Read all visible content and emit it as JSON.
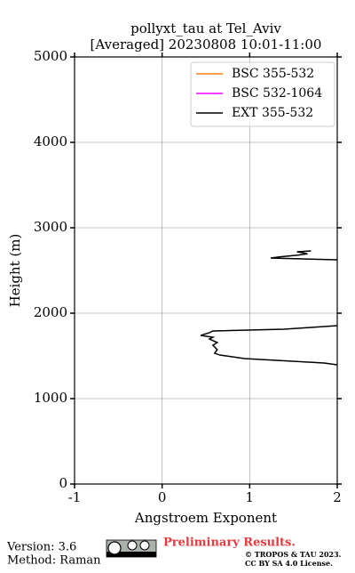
{
  "chart_data": {
    "type": "line",
    "orientation": "vertical-profile",
    "title": "pollyxt_tau at Tel_Aviv",
    "subtitle": "[Averaged] 20230808 10:01-11:00",
    "x_label": "Angstroem Exponent",
    "y_label": "Height (m)",
    "xlim": [
      -1,
      2
    ],
    "xticks": [
      -1,
      0,
      1,
      2
    ],
    "ylim": [
      0,
      5000
    ],
    "yticks": [
      0,
      1000,
      2000,
      3000,
      4000,
      5000
    ],
    "grid": true,
    "legend": "upper right",
    "y": [
      2729,
      2719,
      2705,
      2695,
      2680,
      2660,
      2646,
      2636,
      2625,
      2200,
      1854,
      1833,
      1812,
      1792,
      1771,
      1740,
      1719,
      1698,
      1656,
      1625,
      1573,
      1531,
      1510,
      1469,
      1437,
      1417,
      1396
    ],
    "series": [
      {
        "name": "BSC 355-532",
        "color": "#ff7f0e",
        "values": [
          null,
          null,
          null,
          null,
          null,
          null,
          null,
          null,
          null,
          null,
          null,
          null,
          null,
          null,
          null,
          null,
          null,
          null,
          null,
          null,
          null,
          null,
          null,
          null,
          null,
          null,
          null
        ]
      },
      {
        "name": "BSC 532-1064",
        "color": "#ff00ff",
        "values": [
          null,
          null,
          null,
          null,
          null,
          null,
          null,
          null,
          null,
          null,
          null,
          null,
          null,
          null,
          null,
          null,
          null,
          null,
          null,
          null,
          null,
          null,
          null,
          null,
          null,
          null,
          null
        ]
      },
      {
        "name": "EXT 355-532",
        "color": "#000000",
        "values": [
          1.7,
          1.54,
          1.62,
          1.66,
          1.55,
          1.35,
          1.24,
          1.6,
          2.0,
          null,
          2.0,
          1.7,
          1.39,
          0.58,
          0.54,
          0.44,
          0.58,
          0.54,
          0.63,
          0.58,
          0.63,
          0.6,
          0.66,
          0.94,
          1.49,
          1.85,
          2.0
        ]
      }
    ]
  },
  "footer": {
    "version": "Version: 3.6",
    "method": "Method: Raman",
    "status": "Preliminary Results.",
    "copyright": "© TROPOS & TAU 2023.",
    "license": "CC BY SA 4.0 License."
  }
}
